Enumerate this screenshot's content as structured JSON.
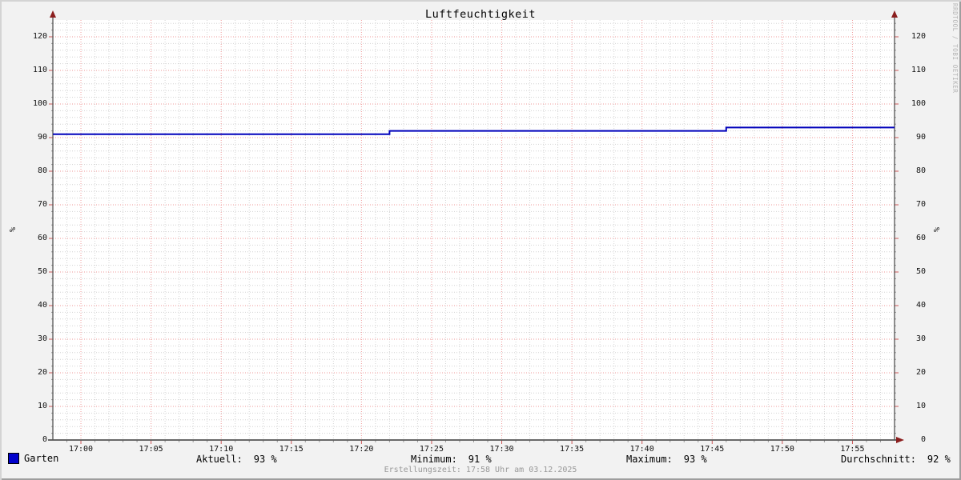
{
  "title": "Luftfeuchtigkeit",
  "watermark": "RRDTOOL / TOBI OETIKER",
  "footer": "Erstellungszeit: 17:58 Uhr am 03.12.2025",
  "legend": {
    "series_label": "Garten",
    "stats": [
      {
        "label": "Aktuell:",
        "value": "93 %"
      },
      {
        "label": "Minimum:",
        "value": "91 %"
      },
      {
        "label": "Maximum:",
        "value": "93 %"
      },
      {
        "label": "Durchschnitt:",
        "value": "92 %"
      }
    ]
  },
  "chart_data": {
    "type": "line",
    "title": "Luftfeuchtigkeit",
    "xlabel": "",
    "ylabel": "%",
    "ylim": [
      0,
      125
    ],
    "y_ticks": [
      0,
      10,
      20,
      30,
      40,
      50,
      60,
      70,
      80,
      90,
      100,
      110,
      120
    ],
    "y_minor_step": 2,
    "x_start": "16:58",
    "x_end": "17:58",
    "x_ticks": [
      "17:00",
      "17:05",
      "17:10",
      "17:15",
      "17:20",
      "17:25",
      "17:30",
      "17:35",
      "17:40",
      "17:45",
      "17:50",
      "17:55"
    ],
    "x_minor_step_min": 1,
    "grid": true,
    "legend_position": "bottom",
    "series": [
      {
        "name": "Garten",
        "color": "#0000bb",
        "points": [
          [
            "16:58",
            91
          ],
          [
            "17:22",
            91
          ],
          [
            "17:22",
            92
          ],
          [
            "17:46",
            92
          ],
          [
            "17:46",
            93
          ],
          [
            "17:58",
            93
          ]
        ]
      }
    ],
    "colors": {
      "background": "#f2f2f2",
      "canvas": "#ffffff",
      "major_grid": "#ef9a9a",
      "minor_grid": "#d4d4d4",
      "axis": "#555555",
      "arrow": "#8b1e1e",
      "tick_major": "#cc5555",
      "tick_minor": "#999999",
      "legend_swatch": "#0000cc",
      "border_light": "#d4d4d4",
      "border_dark": "#9e9e9e"
    }
  }
}
